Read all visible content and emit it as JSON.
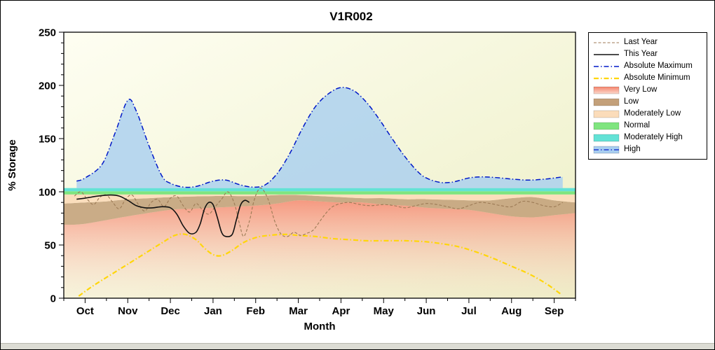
{
  "window": {
    "bottom_strip_color": "#dcdcd4"
  },
  "colors": {
    "plot_bg_top": "#FEFEF2",
    "plot_bg_bottom": "#EDEFC6",
    "very_low": "#F5836B",
    "very_low_fade": "#FBD8CC",
    "low": "#C3A07A",
    "moderately_low": "#FBDCBA",
    "normal": "#7FE57F",
    "moderately_high": "#63E2D6",
    "high_fill": "#A8CEF0",
    "abs_max_line": "#0018C8",
    "abs_min_line": "#FFD60A",
    "last_year_line": "#9C7A55",
    "this_year_line": "#111111",
    "axis": "#000000"
  },
  "legend": {
    "items": [
      {
        "label": "Last Year",
        "style": "line",
        "color_key": "last_year_line",
        "dash": "4 2.5",
        "width": 1.1
      },
      {
        "label": "This Year",
        "style": "line",
        "color_key": "this_year_line",
        "dash": "",
        "width": 1.5
      },
      {
        "label": "Absolute Maximum",
        "style": "line",
        "color_key": "abs_max_line",
        "dash": "7 3 1.5 3",
        "width": 1.5
      },
      {
        "label": "Absolute Minimum",
        "style": "line",
        "color_key": "abs_min_line",
        "dash": "7 3 1.5 3",
        "width": 2.2
      },
      {
        "label": "Very Low",
        "style": "swatch-gradient",
        "color_key": "very_low",
        "color2_key": "very_low_fade"
      },
      {
        "label": "Low",
        "style": "swatch",
        "color_key": "low"
      },
      {
        "label": "Moderately Low",
        "style": "swatch",
        "color_key": "moderately_low"
      },
      {
        "label": "Normal",
        "style": "swatch",
        "color_key": "normal"
      },
      {
        "label": "Moderately High",
        "style": "swatch",
        "color_key": "moderately_high"
      },
      {
        "label": "High",
        "style": "swatch-line",
        "color_key": "high_fill",
        "line_color_key": "abs_max_line",
        "dash": "7 3 1.5 3"
      }
    ]
  },
  "chart_data": {
    "type": "line",
    "title": "V1R002",
    "xlabel": "Month",
    "ylabel": "% Storage",
    "ylim": [
      0,
      250
    ],
    "xlim_months": [
      -0.5,
      11.5
    ],
    "categories": [
      "Oct",
      "Nov",
      "Dec",
      "Jan",
      "Feb",
      "Mar",
      "Apr",
      "May",
      "Jun",
      "Jul",
      "Aug",
      "Sep"
    ],
    "yticks": [
      0,
      50,
      100,
      150,
      200,
      250
    ],
    "bands": {
      "very_low": {
        "label": "Very Low",
        "top": [
          [
            -0.5,
            69
          ],
          [
            0,
            70
          ],
          [
            1,
            77
          ],
          [
            2,
            83
          ],
          [
            2.5,
            84
          ],
          [
            3,
            85
          ],
          [
            4,
            87
          ],
          [
            4.5,
            89
          ],
          [
            5,
            92
          ],
          [
            5.5,
            91
          ],
          [
            6,
            90
          ],
          [
            6.5,
            90
          ],
          [
            7,
            88
          ],
          [
            7.5,
            87
          ],
          [
            8,
            85
          ],
          [
            8.5,
            84
          ],
          [
            9,
            83
          ],
          [
            9.5,
            80
          ],
          [
            10,
            77
          ],
          [
            10.5,
            76
          ],
          [
            11,
            78
          ],
          [
            11.5,
            80
          ]
        ]
      },
      "low": {
        "label": "Low",
        "top": [
          [
            -0.5,
            89
          ],
          [
            0,
            90
          ],
          [
            0.5,
            91
          ],
          [
            1,
            93
          ],
          [
            1.5,
            94
          ],
          [
            2,
            95
          ],
          [
            3,
            96
          ],
          [
            4,
            96
          ],
          [
            4.5,
            97
          ],
          [
            5,
            97
          ],
          [
            5.5,
            96
          ],
          [
            6,
            95
          ],
          [
            6.5,
            94
          ],
          [
            7,
            94
          ],
          [
            7.5,
            93
          ],
          [
            8,
            93
          ],
          [
            9,
            92
          ],
          [
            9.5,
            92
          ],
          [
            10,
            94
          ],
          [
            10.5,
            95
          ],
          [
            11,
            92
          ],
          [
            11.5,
            90
          ]
        ]
      },
      "moderately_low": {
        "label": "Moderately Low",
        "top_value": 97.5
      },
      "normal": {
        "label": "Normal",
        "top_value": 100.5
      },
      "moderately_high": {
        "label": "Moderately High",
        "top_value": 103.5
      },
      "high": {
        "label": "High",
        "note": "filled from moderately_high top up to Absolute Maximum curve"
      }
    },
    "series": [
      {
        "name": "Last Year",
        "points": [
          [
            -0.25,
            96
          ],
          [
            -0.1,
            100
          ],
          [
            0.05,
            93
          ],
          [
            0.2,
            88
          ],
          [
            0.35,
            95
          ],
          [
            0.5,
            97
          ],
          [
            0.65,
            90
          ],
          [
            0.8,
            84
          ],
          [
            0.95,
            93
          ],
          [
            1.1,
            97
          ],
          [
            1.25,
            88
          ],
          [
            1.4,
            82
          ],
          [
            1.55,
            90
          ],
          [
            1.7,
            93
          ],
          [
            1.85,
            86
          ],
          [
            2,
            94
          ],
          [
            2.15,
            96
          ],
          [
            2.3,
            87
          ],
          [
            2.45,
            81
          ],
          [
            2.6,
            89
          ],
          [
            2.75,
            83
          ],
          [
            2.9,
            79
          ],
          [
            3.05,
            86
          ],
          [
            3.2,
            93
          ],
          [
            3.35,
            100
          ],
          [
            3.5,
            89
          ],
          [
            3.62,
            70
          ],
          [
            3.72,
            58
          ],
          [
            3.85,
            72
          ],
          [
            3.95,
            90
          ],
          [
            4.05,
            101
          ],
          [
            4.15,
            103
          ],
          [
            4.3,
            92
          ],
          [
            4.45,
            72
          ],
          [
            4.6,
            60
          ],
          [
            4.75,
            58
          ],
          [
            4.9,
            62
          ],
          [
            5.05,
            59
          ],
          [
            5.2,
            61
          ],
          [
            5.35,
            64
          ],
          [
            5.5,
            72
          ],
          [
            5.65,
            80
          ],
          [
            5.8,
            86
          ],
          [
            6,
            89
          ],
          [
            6.2,
            90
          ],
          [
            6.45,
            88
          ],
          [
            6.7,
            87
          ],
          [
            7,
            88
          ],
          [
            7.25,
            87
          ],
          [
            7.5,
            85
          ],
          [
            7.75,
            87
          ],
          [
            8,
            89
          ],
          [
            8.25,
            88
          ],
          [
            8.5,
            86
          ],
          [
            8.75,
            84
          ],
          [
            9,
            87
          ],
          [
            9.25,
            90
          ],
          [
            9.5,
            89
          ],
          [
            9.75,
            87
          ],
          [
            10,
            86
          ],
          [
            10.25,
            91
          ],
          [
            10.5,
            90
          ],
          [
            10.75,
            87
          ],
          [
            11,
            86
          ],
          [
            11.2,
            90
          ]
        ]
      },
      {
        "name": "This Year",
        "points": [
          [
            -0.2,
            93
          ],
          [
            0,
            94
          ],
          [
            0.3,
            96
          ],
          [
            0.6,
            97
          ],
          [
            0.8,
            96
          ],
          [
            1,
            92
          ],
          [
            1.2,
            87
          ],
          [
            1.4,
            85
          ],
          [
            1.6,
            85
          ],
          [
            1.8,
            86
          ],
          [
            2,
            85
          ],
          [
            2.15,
            79
          ],
          [
            2.3,
            68
          ],
          [
            2.45,
            61
          ],
          [
            2.6,
            62
          ],
          [
            2.7,
            70
          ],
          [
            2.8,
            84
          ],
          [
            2.9,
            90
          ],
          [
            3,
            88
          ],
          [
            3.1,
            76
          ],
          [
            3.2,
            62
          ],
          [
            3.3,
            58
          ],
          [
            3.45,
            60
          ],
          [
            3.55,
            74
          ],
          [
            3.65,
            88
          ],
          [
            3.75,
            92
          ],
          [
            3.85,
            90
          ]
        ]
      },
      {
        "name": "Absolute Maximum",
        "points": [
          [
            -0.2,
            110
          ],
          [
            0,
            113
          ],
          [
            0.4,
            126
          ],
          [
            0.7,
            155
          ],
          [
            1,
            186
          ],
          [
            1.2,
            176
          ],
          [
            1.5,
            143
          ],
          [
            1.8,
            115
          ],
          [
            2,
            108
          ],
          [
            2.3,
            104.5
          ],
          [
            2.6,
            105
          ],
          [
            3,
            110
          ],
          [
            3.3,
            111
          ],
          [
            3.6,
            107
          ],
          [
            3.9,
            104.5
          ],
          [
            4.2,
            106
          ],
          [
            4.5,
            117
          ],
          [
            4.8,
            136
          ],
          [
            5.1,
            160
          ],
          [
            5.4,
            180
          ],
          [
            5.7,
            192
          ],
          [
            6,
            198
          ],
          [
            6.3,
            195
          ],
          [
            6.6,
            184
          ],
          [
            6.9,
            168
          ],
          [
            7.2,
            150
          ],
          [
            7.5,
            133
          ],
          [
            7.8,
            119
          ],
          [
            8,
            113
          ],
          [
            8.3,
            109
          ],
          [
            8.6,
            109
          ],
          [
            9,
            113
          ],
          [
            9.3,
            114
          ],
          [
            9.6,
            113.5
          ],
          [
            10,
            112
          ],
          [
            10.4,
            111
          ],
          [
            10.8,
            112
          ],
          [
            11.2,
            114
          ]
        ]
      },
      {
        "name": "Absolute Minimum",
        "points": [
          [
            -0.15,
            2
          ],
          [
            0.2,
            12
          ],
          [
            0.6,
            22
          ],
          [
            1,
            32
          ],
          [
            1.4,
            42
          ],
          [
            1.8,
            52
          ],
          [
            2.1,
            59
          ],
          [
            2.35,
            60
          ],
          [
            2.6,
            55
          ],
          [
            2.8,
            47
          ],
          [
            3,
            41
          ],
          [
            3.2,
            40
          ],
          [
            3.45,
            45
          ],
          [
            3.7,
            52
          ],
          [
            4,
            57
          ],
          [
            4.3,
            59
          ],
          [
            4.7,
            60
          ],
          [
            5,
            59
          ],
          [
            5.4,
            58
          ],
          [
            5.8,
            56
          ],
          [
            6.2,
            55
          ],
          [
            6.6,
            54
          ],
          [
            7,
            54
          ],
          [
            7.5,
            54
          ],
          [
            8,
            53
          ],
          [
            8.4,
            51
          ],
          [
            8.8,
            48
          ],
          [
            9.2,
            43
          ],
          [
            9.6,
            37
          ],
          [
            10,
            30
          ],
          [
            10.4,
            23
          ],
          [
            10.8,
            14
          ],
          [
            11.15,
            4
          ]
        ]
      }
    ]
  }
}
